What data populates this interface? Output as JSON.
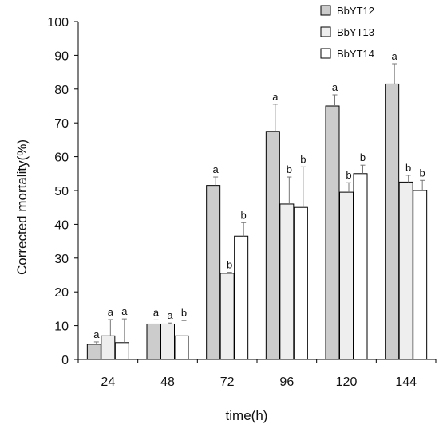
{
  "chart_data": {
    "type": "bar",
    "xlabel": "time(h)",
    "ylabel": "Corrected mortality(%)",
    "ylim": [
      0,
      100
    ],
    "yticks": [
      0,
      10,
      20,
      30,
      40,
      50,
      60,
      70,
      80,
      90,
      100
    ],
    "categories": [
      "24",
      "48",
      "72",
      "96",
      "120",
      "144"
    ],
    "legend_position": "top-right",
    "grid": false,
    "series": [
      {
        "name": "BbYT12",
        "color": "#cccccc",
        "values": [
          4.5,
          10.5,
          51.5,
          67.5,
          75.0,
          81.5
        ],
        "errors": [
          0.7,
          1.2,
          2.5,
          8.0,
          3.3,
          6.0
        ],
        "labels": [
          "a",
          "a",
          "a",
          "a",
          "a",
          "a"
        ]
      },
      {
        "name": "BbYT13",
        "color": "#eeeeee",
        "values": [
          7.0,
          10.5,
          25.5,
          46.0,
          49.5,
          52.5
        ],
        "errors": [
          4.8,
          0.3,
          0.3,
          8.0,
          2.8,
          2.0
        ],
        "labels": [
          "a",
          "a",
          "b",
          "b",
          "b",
          "b"
        ]
      },
      {
        "name": "BbYT14",
        "color": "#ffffff",
        "values": [
          5.0,
          7.0,
          36.5,
          45.0,
          55.0,
          50.0
        ],
        "errors": [
          7.0,
          4.5,
          4.0,
          12.0,
          2.5,
          3.0
        ],
        "labels": [
          "a",
          "b",
          "b",
          "b",
          "b",
          "b"
        ]
      }
    ]
  }
}
